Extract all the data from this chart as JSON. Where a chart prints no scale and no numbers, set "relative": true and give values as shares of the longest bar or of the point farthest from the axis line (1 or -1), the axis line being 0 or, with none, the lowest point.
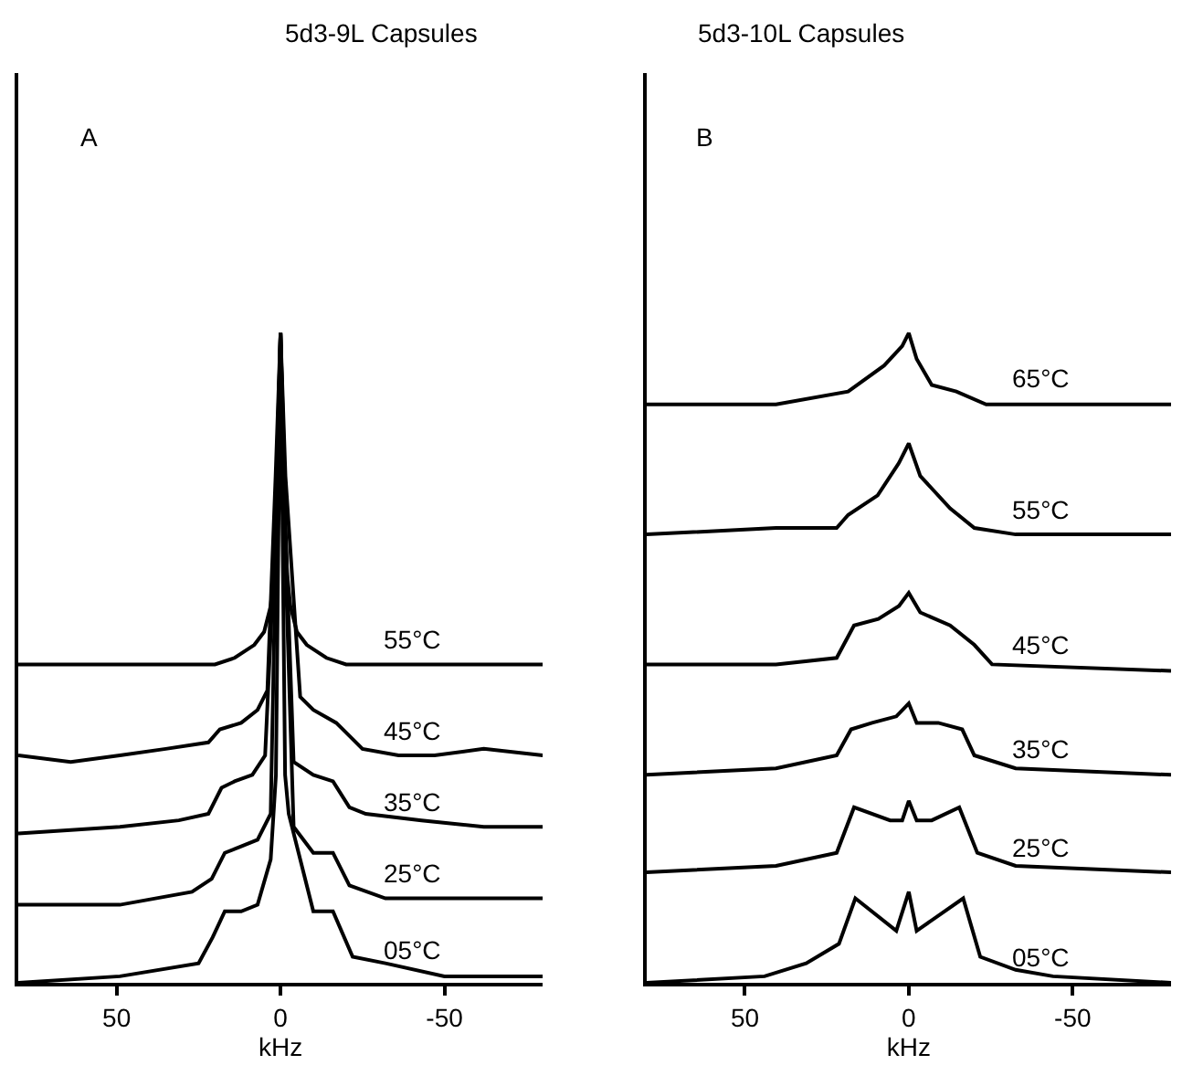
{
  "chart_data": [
    {
      "type": "line",
      "title": "5d3-9L Capsules",
      "xlabel": "kHz",
      "xlim": [
        80,
        -80
      ],
      "xticks": [
        50,
        0,
        -50
      ],
      "relative": true,
      "annotations": [
        "A"
      ],
      "series": [
        {
          "name": "55°C",
          "color": "#000000",
          "x": [
            80,
            40,
            20,
            14,
            8,
            5,
            3,
            2,
            1.5,
            1,
            0,
            -1,
            -1.5,
            -2,
            -3,
            -5,
            -8,
            -14,
            -20,
            -40,
            -80
          ],
          "values": [
            0.49,
            0.49,
            0.49,
            0.5,
            0.52,
            0.54,
            0.58,
            0.63,
            0.7,
            0.82,
            1,
            0.82,
            0.7,
            0.63,
            0.58,
            0.54,
            0.52,
            0.5,
            0.49,
            0.49,
            0.49
          ]
        },
        {
          "name": "45°C",
          "color": "#000000",
          "x": [
            80,
            64,
            49,
            35,
            22,
            18.5,
            12,
            7,
            4,
            1.5,
            0,
            -1.5,
            -6,
            -10,
            -17,
            -21,
            -25,
            -36,
            -47,
            -62,
            -80
          ],
          "values": [
            0.35,
            0.34,
            0.35,
            0.36,
            0.37,
            0.39,
            0.4,
            0.42,
            0.45,
            0.78,
            1,
            0.78,
            0.44,
            0.42,
            0.4,
            0.38,
            0.36,
            0.35,
            0.35,
            0.36,
            0.35
          ]
        },
        {
          "name": "35°C",
          "color": "#000000",
          "x": [
            80,
            49,
            31,
            22,
            18,
            14,
            8.6,
            4.7,
            1.5,
            0,
            -1.5,
            -4,
            -10,
            -16,
            -21,
            -26,
            -43,
            -62,
            -80
          ],
          "values": [
            0.23,
            0.24,
            0.25,
            0.26,
            0.3,
            0.31,
            0.32,
            0.35,
            0.7,
            1,
            0.7,
            0.34,
            0.32,
            0.31,
            0.27,
            0.26,
            0.25,
            0.24,
            0.24
          ]
        },
        {
          "name": "25°C",
          "color": "#000000",
          "x": [
            80,
            49,
            27,
            21,
            17,
            12,
            7,
            3,
            1.5,
            0,
            -1.5,
            -4,
            -10,
            -16,
            -21,
            -32,
            -62,
            -80
          ],
          "values": [
            0.12,
            0.12,
            0.14,
            0.16,
            0.2,
            0.21,
            0.22,
            0.26,
            0.65,
            1,
            0.65,
            0.24,
            0.2,
            0.2,
            0.15,
            0.13,
            0.13,
            0.13
          ]
        },
        {
          "name": "05°C",
          "color": "#000000",
          "x": [
            80,
            49,
            25,
            20.7,
            17,
            12,
            7,
            3,
            1.4,
            0,
            -1.4,
            -2.5,
            -10,
            -16,
            -22,
            -32,
            -50,
            -80
          ],
          "values": [
            0.0,
            0.01,
            0.03,
            0.07,
            0.11,
            0.11,
            0.12,
            0.19,
            0.32,
            1,
            0.32,
            0.26,
            0.11,
            0.11,
            0.04,
            0.03,
            0.01,
            0.01
          ]
        }
      ]
    },
    {
      "type": "line",
      "title": "5d3-10L Capsules",
      "xlabel": "kHz",
      "xlim": [
        80,
        -80
      ],
      "xticks": [
        50,
        0,
        -50
      ],
      "relative": true,
      "annotations": [
        "B"
      ],
      "series": [
        {
          "name": "65°C",
          "color": "#000000",
          "x": [
            80,
            40.5,
            18.5,
            7.5,
            2,
            0,
            -2.4,
            -7,
            -14.5,
            -23.6,
            -80
          ],
          "values": [
            0.89,
            0.89,
            0.91,
            0.95,
            0.98,
            1,
            0.96,
            0.92,
            0.91,
            0.89,
            0.89
          ]
        },
        {
          "name": "55°C",
          "color": "#000000",
          "x": [
            80,
            40.5,
            22,
            18.5,
            9.5,
            3,
            0,
            -3.5,
            -12.6,
            -20,
            -32.6,
            -80
          ],
          "values": [
            0.69,
            0.7,
            0.7,
            0.72,
            0.75,
            0.8,
            0.83,
            0.78,
            0.73,
            0.7,
            0.69,
            0.69
          ]
        },
        {
          "name": "45°C",
          "color": "#000000",
          "x": [
            80,
            40.5,
            22,
            16.7,
            9.3,
            3,
            0,
            -3.5,
            -12.6,
            -20,
            -25.4,
            -80
          ],
          "values": [
            0.49,
            0.49,
            0.5,
            0.55,
            0.56,
            0.58,
            0.6,
            0.57,
            0.55,
            0.52,
            0.49,
            0.48
          ]
        },
        {
          "name": "35°C",
          "color": "#000000",
          "x": [
            80,
            40.5,
            22,
            17.6,
            11.2,
            3.8,
            0,
            -2.4,
            -9,
            -16.3,
            -20,
            -32.6,
            -80
          ],
          "values": [
            0.32,
            0.33,
            0.35,
            0.39,
            0.4,
            0.41,
            0.43,
            0.4,
            0.4,
            0.39,
            0.35,
            0.33,
            0.32
          ]
        },
        {
          "name": "25°C",
          "color": "#000000",
          "x": [
            80,
            40.5,
            22,
            16.7,
            5.7,
            2,
            0,
            -2.4,
            -7,
            -15.4,
            -20.9,
            -32.6,
            -80
          ],
          "values": [
            0.17,
            0.18,
            0.2,
            0.27,
            0.25,
            0.25,
            0.28,
            0.25,
            0.25,
            0.27,
            0.2,
            0.18,
            0.17
          ]
        },
        {
          "name": "05°C",
          "color": "#000000",
          "x": [
            80,
            44,
            31.3,
            21.3,
            16.3,
            3.8,
            0,
            -2.4,
            -16.6,
            -21.8,
            -32.6,
            -44,
            -80
          ],
          "values": [
            0.0,
            0.01,
            0.03,
            0.06,
            0.13,
            0.08,
            0.14,
            0.08,
            0.13,
            0.04,
            0.02,
            0.01,
            0.0
          ]
        }
      ]
    }
  ]
}
